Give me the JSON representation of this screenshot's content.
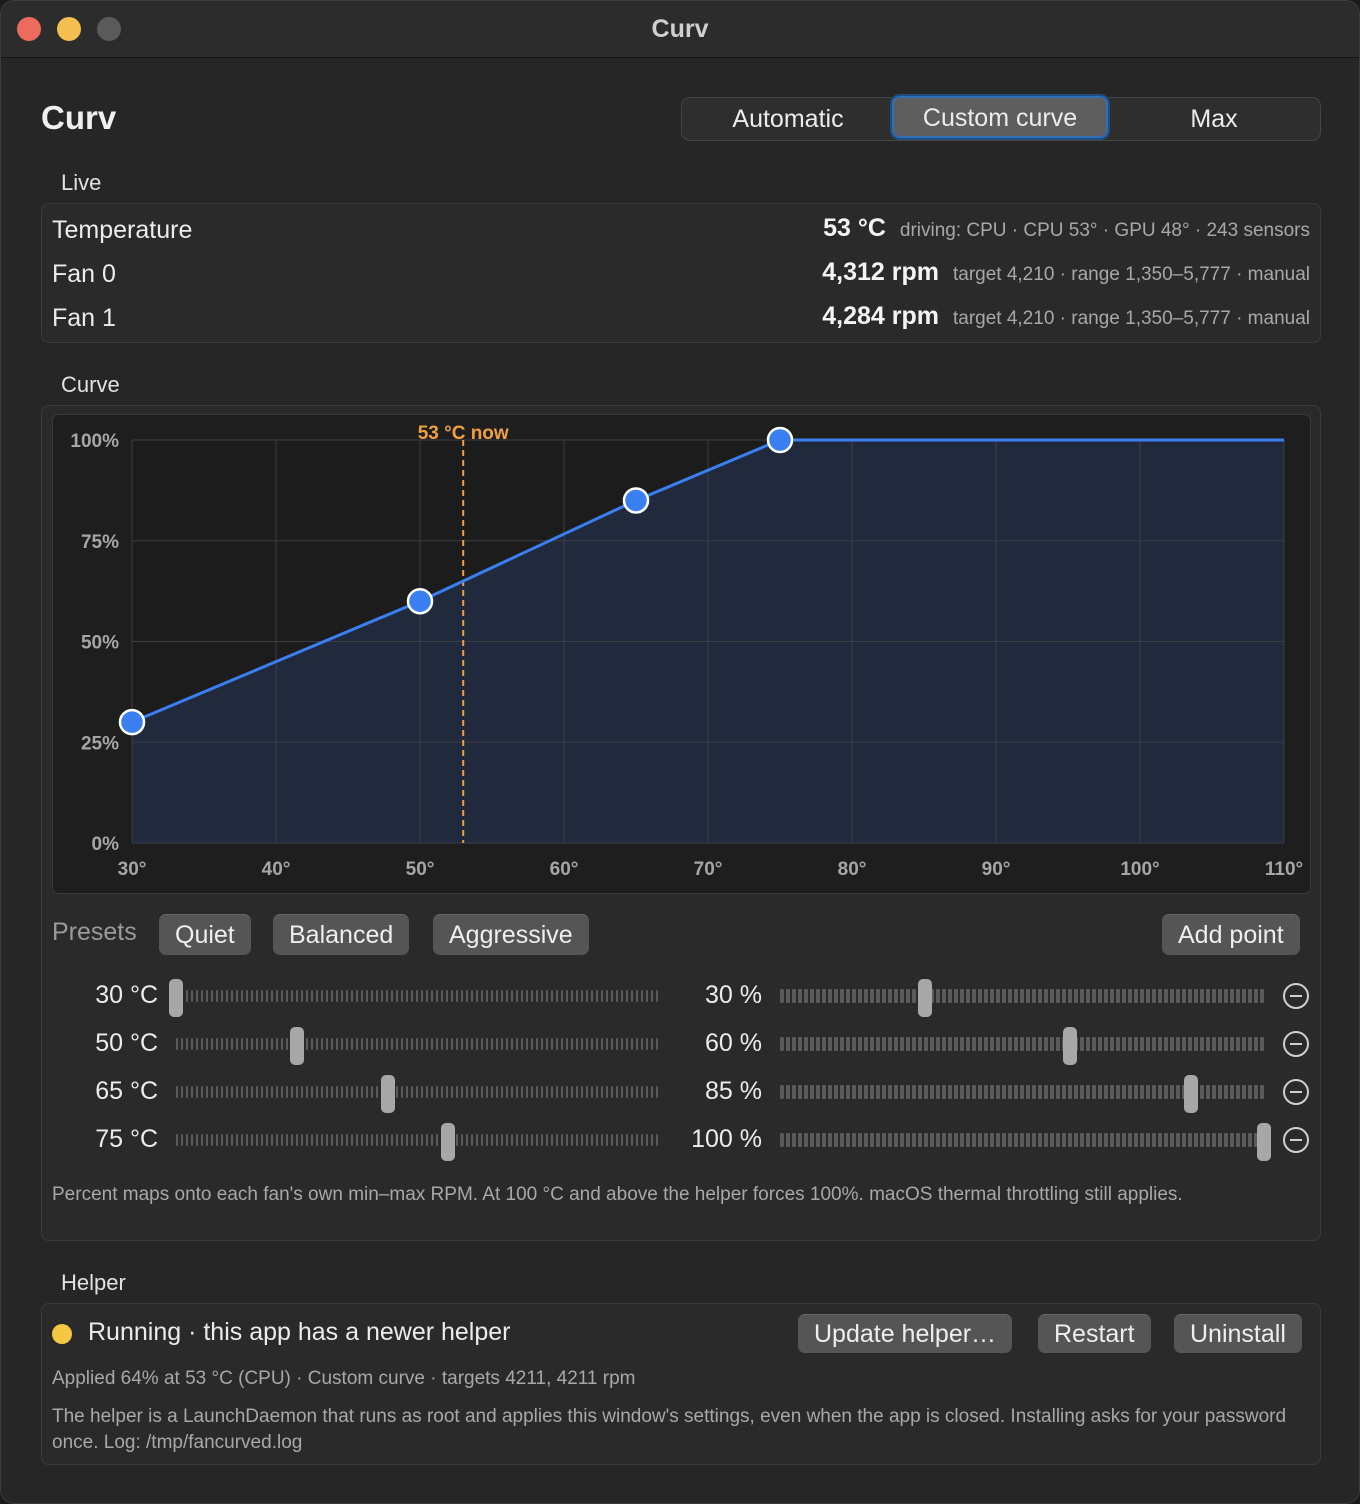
{
  "window": {
    "title": "Curv"
  },
  "app_title": "Curv",
  "mode": {
    "options": [
      "Automatic",
      "Custom curve",
      "Max"
    ],
    "selected": "Custom curve"
  },
  "live": {
    "label": "Live",
    "rows": [
      {
        "name": "Temperature",
        "value": "53 °C",
        "detail": "driving: CPU · CPU 53° · GPU 48° · 243 sensors"
      },
      {
        "name": "Fan 0",
        "value": "4,312 rpm",
        "detail": "target 4,210 · range 1,350–5,777 · manual"
      },
      {
        "name": "Fan 1",
        "value": "4,284 rpm",
        "detail": "target 4,210 · range 1,350–5,777 · manual"
      }
    ]
  },
  "curve": {
    "label": "Curve",
    "presets_label": "Presets",
    "presets": [
      "Quiet",
      "Balanced",
      "Aggressive"
    ],
    "add_point_label": "Add point",
    "points": [
      {
        "temp": 30,
        "temp_label": "30 °C",
        "pct": 30,
        "pct_label": "30 %"
      },
      {
        "temp": 50,
        "temp_label": "50 °C",
        "pct": 60,
        "pct_label": "60 %"
      },
      {
        "temp": 65,
        "temp_label": "65 °C",
        "pct": 85,
        "pct_label": "85 %"
      },
      {
        "temp": 75,
        "temp_label": "75 °C",
        "pct": 100,
        "pct_label": "100 %"
      }
    ],
    "note": "Percent maps onto each fan's own min–max RPM. At 100 °C and above the helper forces 100%. macOS thermal throttling still applies."
  },
  "chart_data": {
    "type": "area",
    "x": [
      30,
      50,
      65,
      75,
      110
    ],
    "y": [
      30,
      60,
      85,
      100,
      100
    ],
    "xlim": [
      30,
      110
    ],
    "ylim": [
      0,
      100
    ],
    "x_ticks": [
      30,
      40,
      50,
      60,
      70,
      80,
      90,
      100,
      110
    ],
    "x_tick_labels": [
      "30°",
      "40°",
      "50°",
      "60°",
      "70°",
      "80°",
      "90°",
      "100°",
      "110°"
    ],
    "y_ticks": [
      0,
      25,
      50,
      75,
      100
    ],
    "y_tick_labels": [
      "0%",
      "25%",
      "50%",
      "75%",
      "100%"
    ],
    "grid": true,
    "marker": {
      "x": 53,
      "label": "53 °C now",
      "color": "#f0a040"
    },
    "line_color": "#3a7ff0",
    "fill_color": "#212a3d"
  },
  "helper": {
    "label": "Helper",
    "status": "Running · this app has a newer helper",
    "status_color": "#f5c842",
    "buttons": [
      "Update helper…",
      "Restart",
      "Uninstall"
    ],
    "applied": "Applied 64% at 53 °C (CPU) · Custom curve · targets 4211, 4211 rpm",
    "description": "The helper is a LaunchDaemon that runs as root and applies this window's settings, even when the app is closed. Installing asks for your password once. Log: /tmp/fancurved.log"
  }
}
